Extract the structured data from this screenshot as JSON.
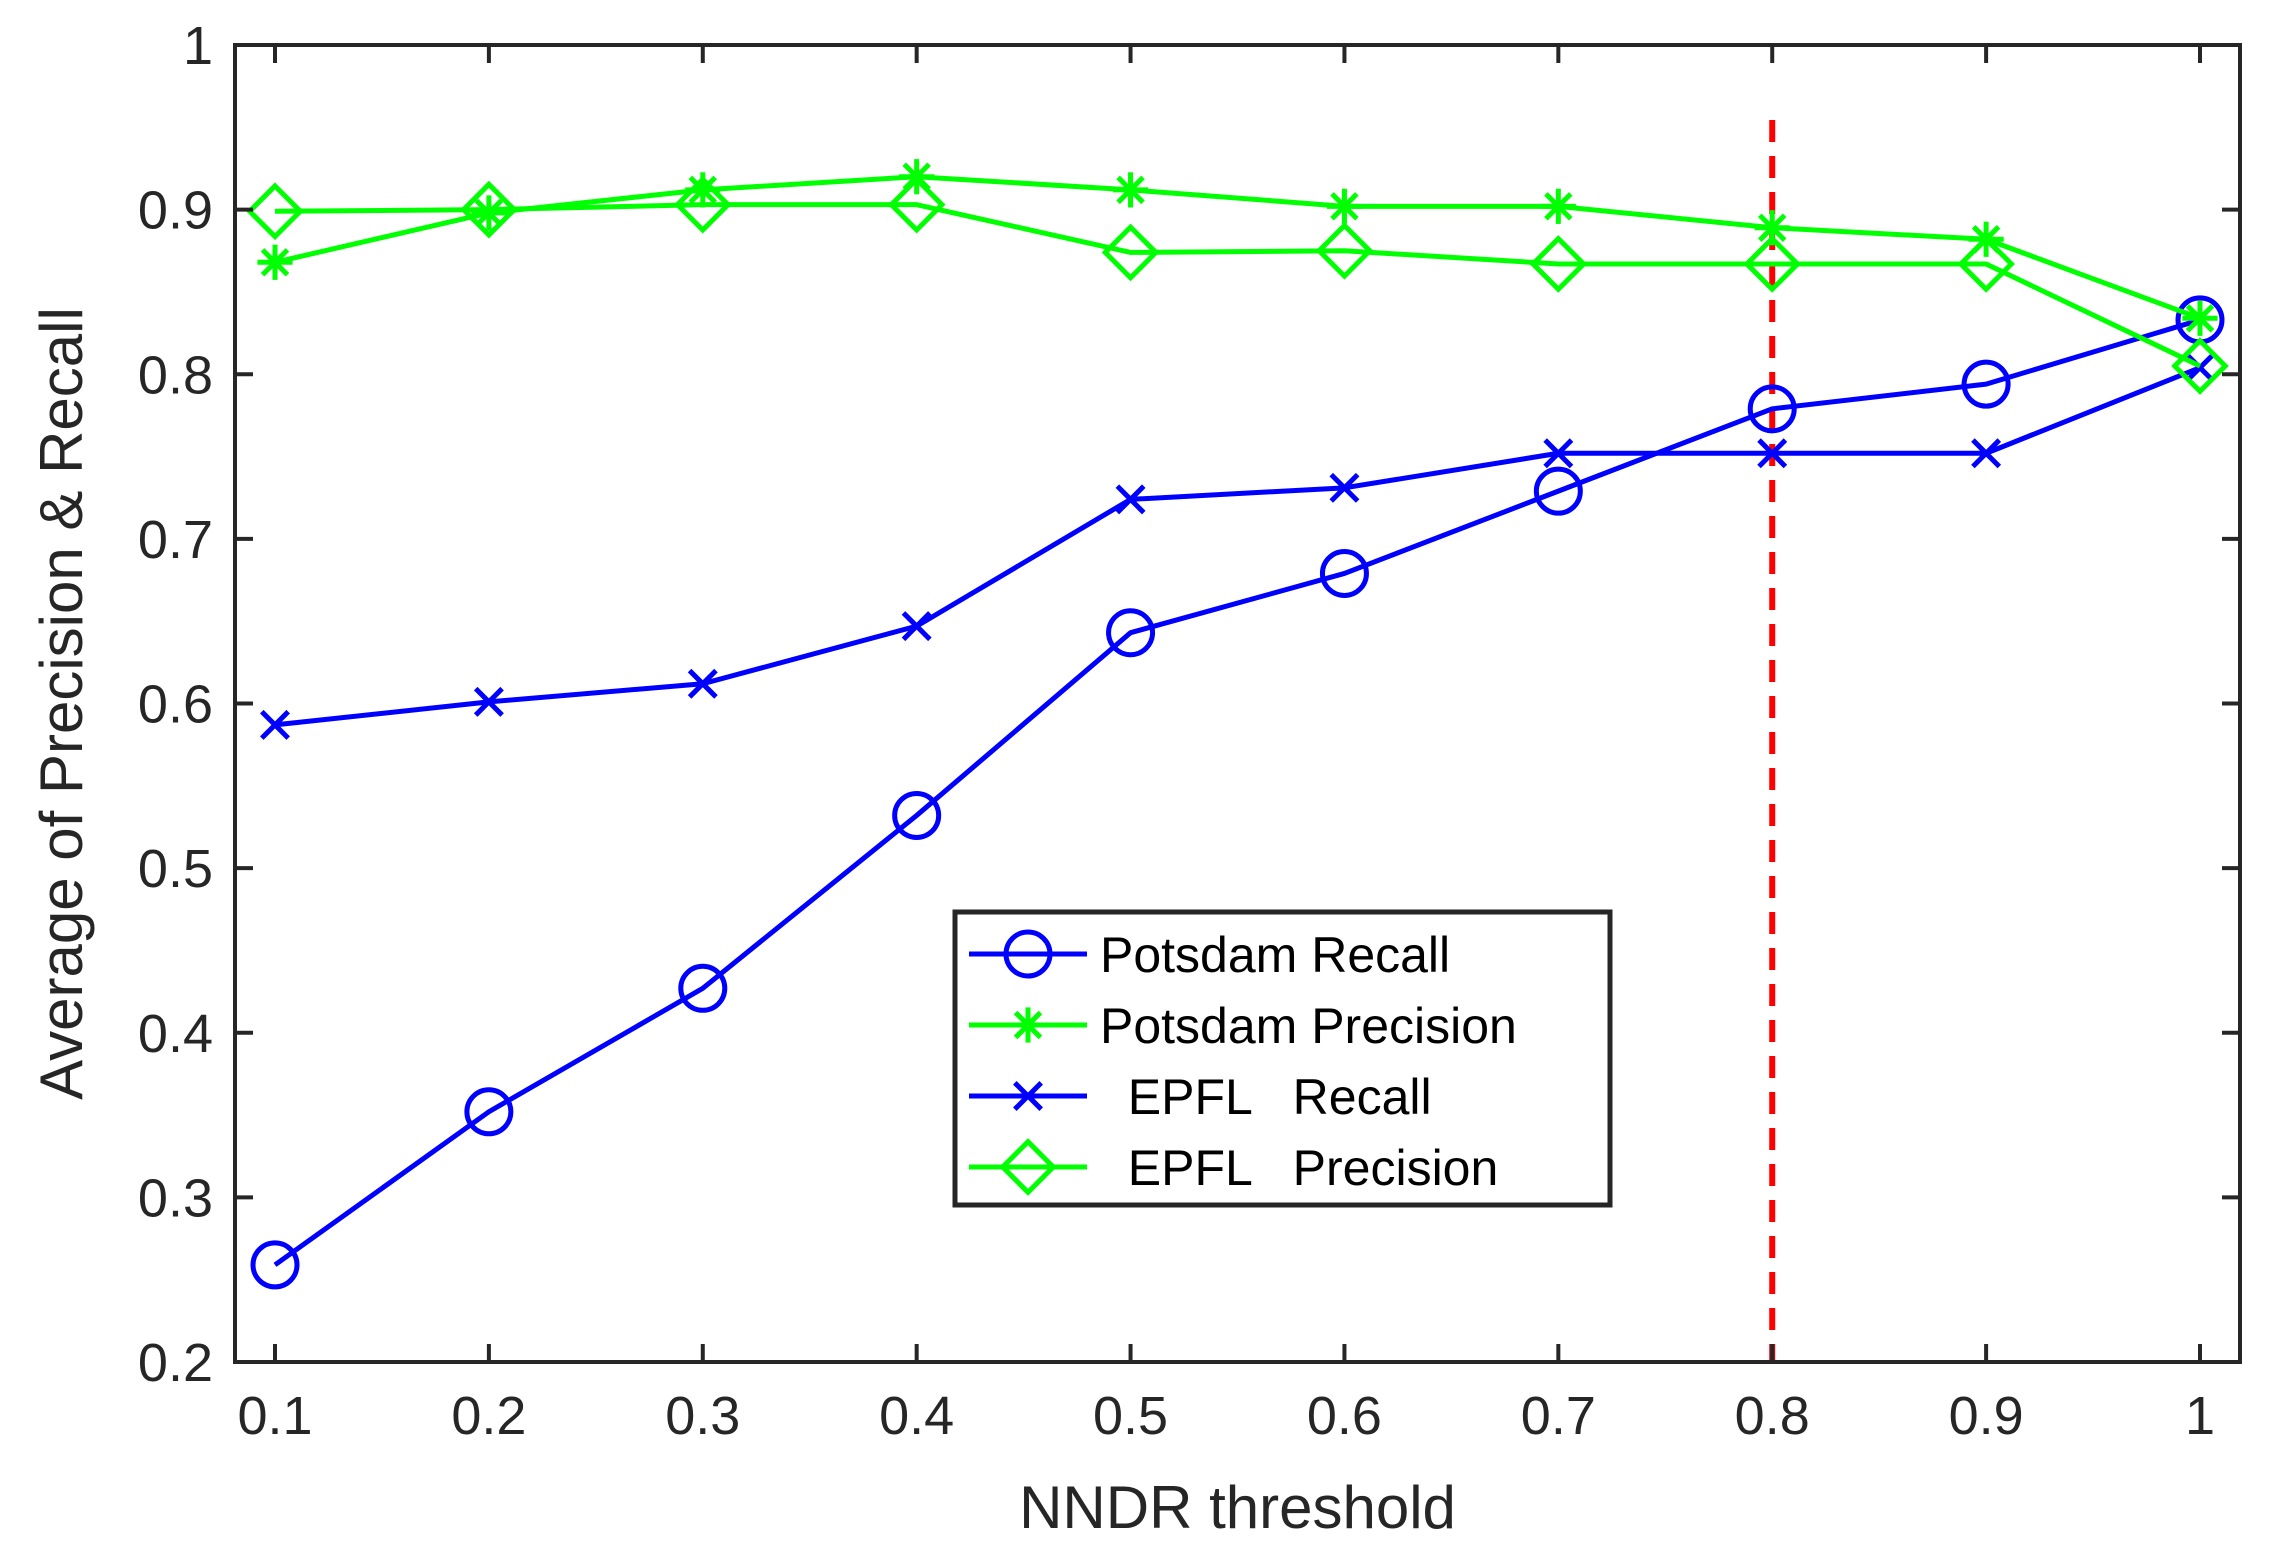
{
  "chart_data": {
    "type": "line",
    "xlabel": "NNDR threshold",
    "ylabel": "Average of Precision & Recall",
    "xlim": [
      0.1,
      1
    ],
    "ylim": [
      0.2,
      1
    ],
    "xticks": [
      0.1,
      0.2,
      0.3,
      0.4,
      0.5,
      0.6,
      0.7,
      0.8,
      0.9,
      1
    ],
    "xtick_labels": [
      "0.1",
      "0.2",
      "0.3",
      "0.4",
      "0.5",
      "0.6",
      "0.7",
      "0.8",
      "0.9",
      "1"
    ],
    "yticks": [
      0.2,
      0.3,
      0.4,
      0.5,
      0.6,
      0.7,
      0.8,
      0.9,
      1
    ],
    "ytick_labels": [
      "0.2",
      "0.3",
      "0.4",
      "0.5",
      "0.6",
      "0.7",
      "0.8",
      "0.9",
      "1"
    ],
    "x": [
      0.1,
      0.2,
      0.3,
      0.4,
      0.5,
      0.6,
      0.7,
      0.8,
      0.9,
      1
    ],
    "series": [
      {
        "name": "Potsdam Recall",
        "color": "#0000ff",
        "marker": "circle",
        "values": [
          0.259,
          0.352,
          0.427,
          0.532,
          0.643,
          0.679,
          0.729,
          0.779,
          0.794,
          0.833
        ]
      },
      {
        "name": "Potsdam Precision",
        "color": "#00ff00",
        "marker": "asterisk",
        "values": [
          0.868,
          0.898,
          0.912,
          0.92,
          0.912,
          0.902,
          0.902,
          0.889,
          0.882,
          0.834
        ]
      },
      {
        "name": "  EPFL   Recall",
        "color": "#0000ff",
        "marker": "x",
        "values": [
          0.587,
          0.601,
          0.612,
          0.647,
          0.724,
          0.731,
          0.752,
          0.752,
          0.752,
          0.804
        ]
      },
      {
        "name": "  EPFL   Precision",
        "color": "#00ff00",
        "marker": "diamond",
        "values": [
          0.899,
          0.9,
          0.903,
          0.903,
          0.874,
          0.875,
          0.867,
          0.867,
          0.867,
          0.805
        ]
      }
    ],
    "reference_line": {
      "x": 0.8,
      "color": "#ff0000",
      "style": "dashed"
    },
    "legend_position": "inside-lower-center",
    "grid": false
  }
}
